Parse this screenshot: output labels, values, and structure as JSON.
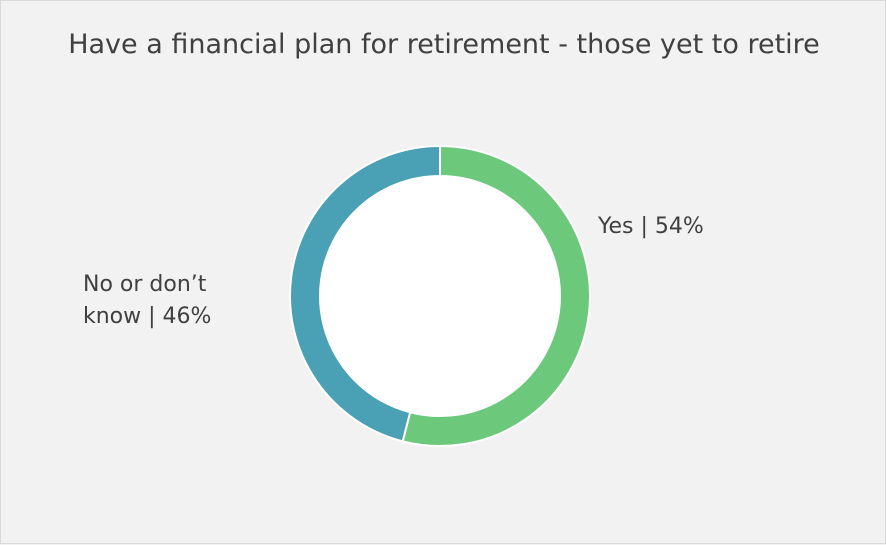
{
  "chart_data": {
    "type": "pie",
    "title": "Have a financial plan for retirement - those yet to retire",
    "donut": true,
    "series": [
      {
        "label_line1": "Yes | 54%",
        "label_line2": "",
        "value": 54,
        "color": "#6cc87a"
      },
      {
        "label_line1": "No or don’t",
        "label_line2": "know | 46%",
        "value": 46,
        "color": "#4aa0b5"
      }
    ],
    "legend": "none"
  }
}
